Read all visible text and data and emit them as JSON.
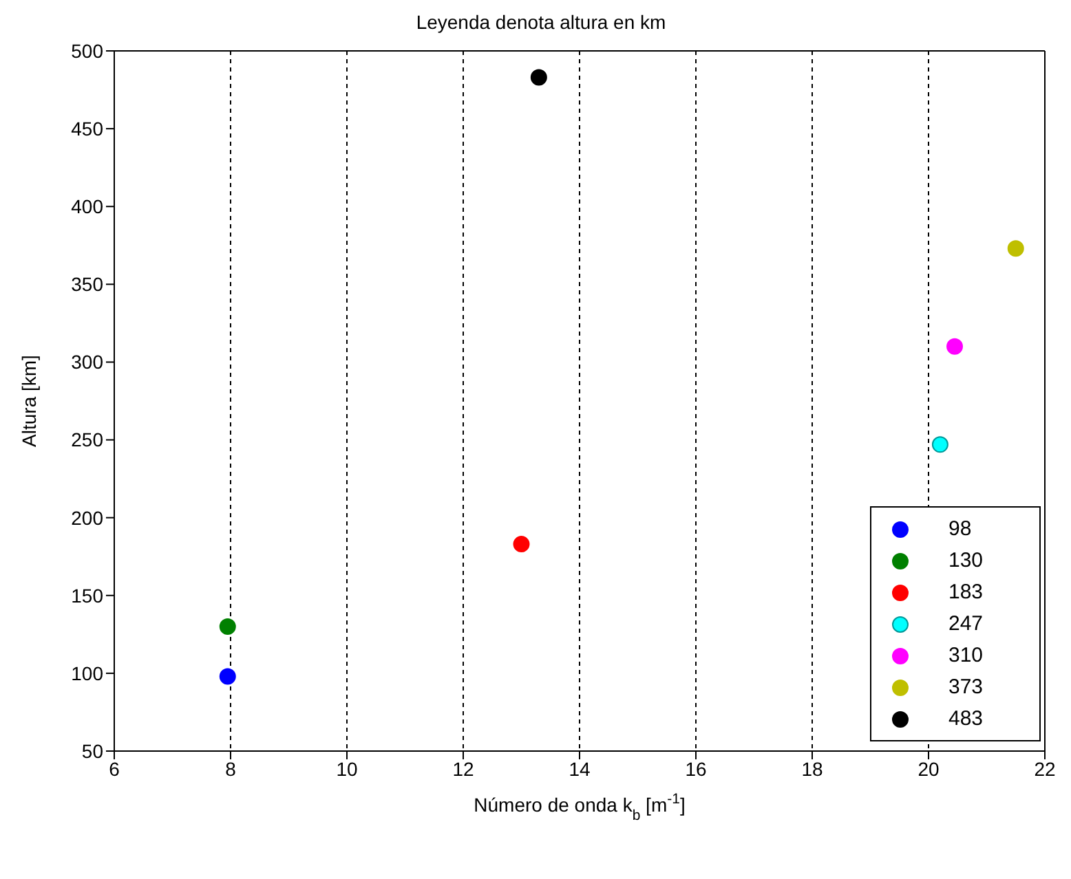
{
  "chart_data": {
    "type": "scatter",
    "title": "Leyenda denota altura en km",
    "xlabel": "Número de onda k$_{b}$ [m$^{-1}$]",
    "ylabel": "Altura [km]",
    "xlim": [
      6,
      22
    ],
    "xticks": [
      6,
      8,
      10,
      12,
      14,
      16,
      18,
      20,
      22
    ],
    "ylim": [
      50,
      500
    ],
    "yticks": [
      50,
      100,
      150,
      200,
      250,
      300,
      350,
      400,
      450,
      500
    ],
    "grid": "x",
    "legend": "bottom right",
    "marker": "circle",
    "series": [
      {
        "name": "98",
        "color": "#0000ff",
        "x": [
          7.95
        ],
        "values": [
          98
        ]
      },
      {
        "name": "130",
        "color": "#008000",
        "x": [
          7.95
        ],
        "values": [
          130
        ]
      },
      {
        "name": "183",
        "color": "#ff0000",
        "x": [
          13.0
        ],
        "values": [
          183
        ]
      },
      {
        "name": "247",
        "color": "#00ffff",
        "x": [
          20.2
        ],
        "values": [
          247
        ]
      },
      {
        "name": "310",
        "color": "#ff00ff",
        "x": [
          20.45
        ],
        "values": [
          310
        ]
      },
      {
        "name": "373",
        "color": "#bfbf00",
        "x": [
          21.5
        ],
        "values": [
          373
        ]
      },
      {
        "name": "483",
        "color": "#000000",
        "x": [
          13.3
        ],
        "values": [
          483
        ]
      }
    ]
  }
}
